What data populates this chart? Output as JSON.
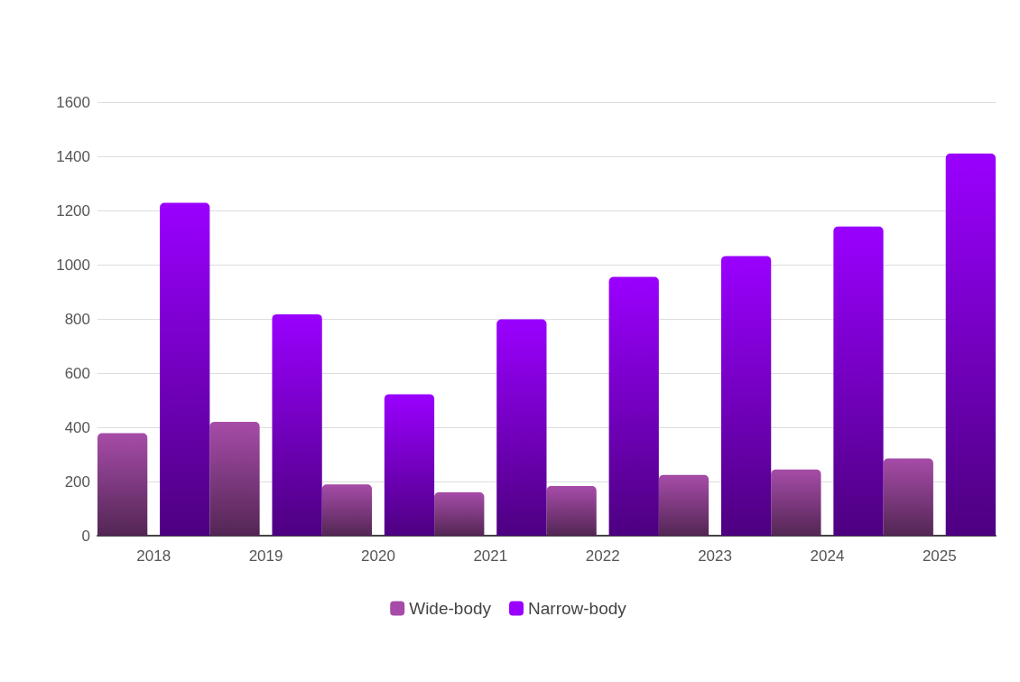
{
  "chart_data": {
    "type": "bar",
    "categories": [
      "2018",
      "2019",
      "2020",
      "2021",
      "2022",
      "2023",
      "2024",
      "2025"
    ],
    "series": [
      {
        "name": "Wide-body",
        "color": "#a64ca8",
        "values": [
          378,
          420,
          189,
          160,
          183,
          224,
          244,
          285
        ]
      },
      {
        "name": "Narrow-body",
        "color": "#9a00ff",
        "values": [
          1228,
          817,
          522,
          798,
          955,
          1032,
          1141,
          1410
        ]
      }
    ],
    "ylim": [
      0,
      1600
    ],
    "yticks": [
      0,
      200,
      400,
      600,
      800,
      1000,
      1200,
      1400,
      1600
    ],
    "grid": "y",
    "legend": "bottom"
  }
}
